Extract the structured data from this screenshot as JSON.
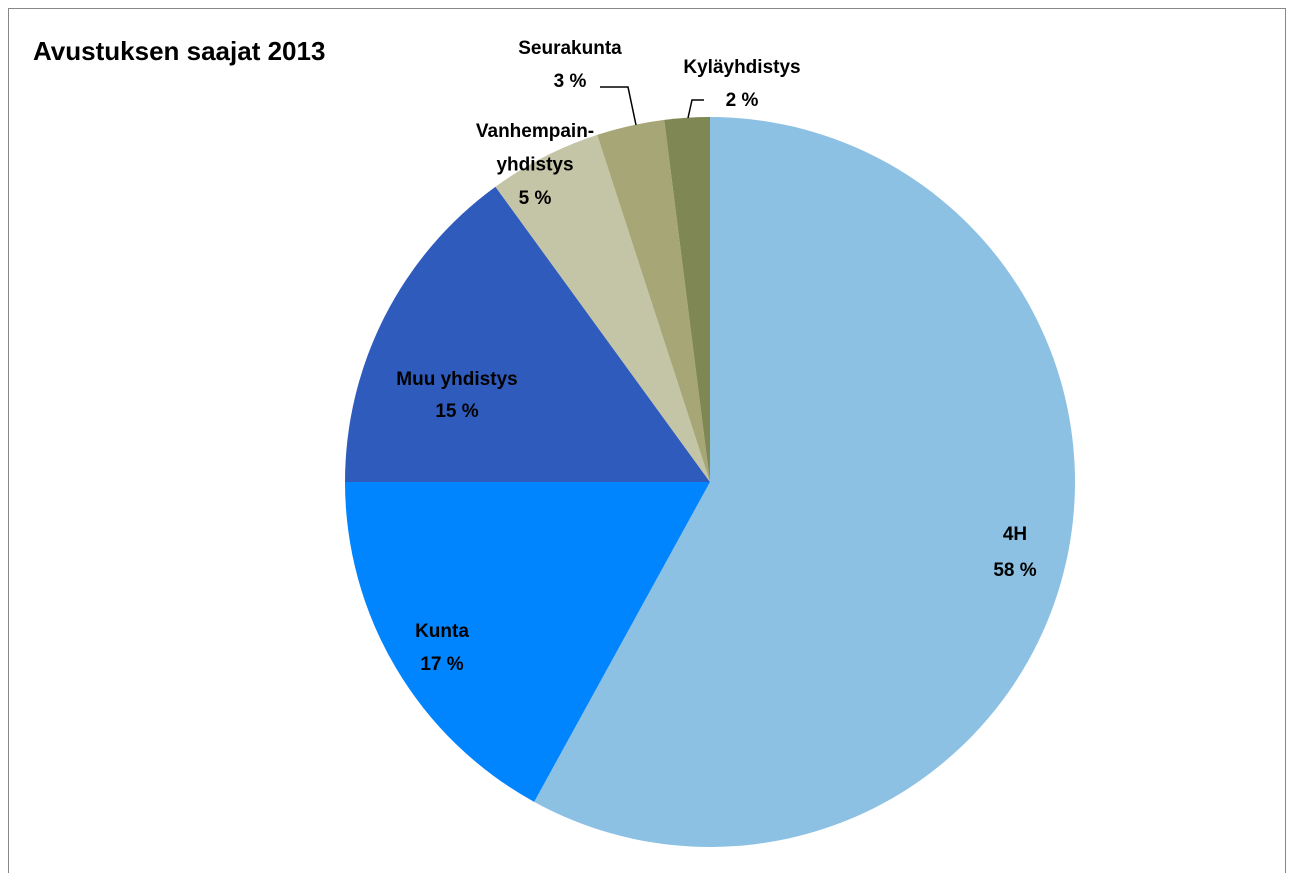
{
  "chart_data": {
    "type": "pie",
    "title": "Avustuksen saajat 2013",
    "categories": [
      "4H",
      "Kunta",
      "Muu yhdistys",
      "Vanhempain-\nyhdistys",
      "Seurakunta",
      "Kyläyhdistys"
    ],
    "values": [
      58,
      17,
      15,
      5,
      3,
      2
    ],
    "value_labels": [
      "58 %",
      "17 %",
      "15 %",
      "5 %",
      "3 %",
      "2 %"
    ],
    "colors": [
      "#8cc1e4",
      "#0085ff",
      "#2f5bbd",
      "#c4c5a6",
      "#a6a677",
      "#7f8754"
    ]
  }
}
